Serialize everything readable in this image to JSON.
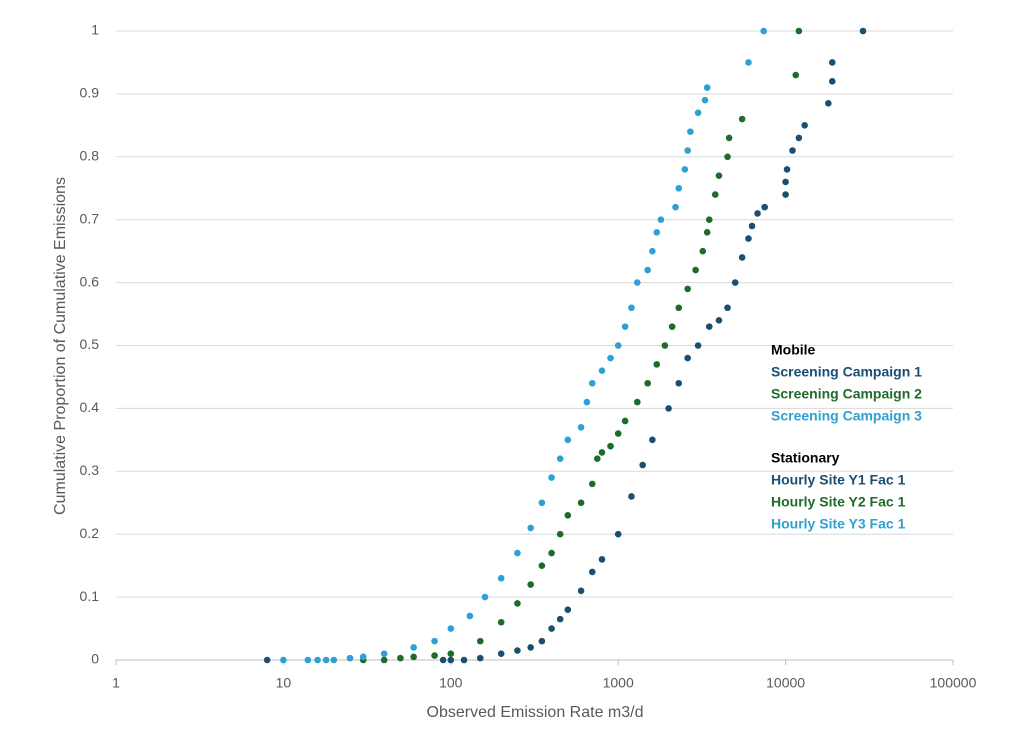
{
  "chart_data": {
    "type": "scatter",
    "xlabel": "Observed Emission Rate m3/d",
    "ylabel": "Cumulative Proportion of Cumulative Emissions",
    "xscale": "log",
    "xlim": [
      1,
      100000
    ],
    "xticks": [
      1,
      10,
      100,
      1000,
      10000,
      100000
    ],
    "ylim": [
      0,
      1
    ],
    "yticks": [
      0,
      0.1,
      0.2,
      0.3,
      0.4,
      0.5,
      0.6,
      0.7,
      0.8,
      0.9,
      1
    ],
    "grid": true,
    "legend_position": "right",
    "series": [
      {
        "color": "#1b4f72",
        "x": [
          8,
          90,
          100,
          120,
          150,
          200,
          250,
          300,
          350,
          400,
          450,
          500,
          600,
          700,
          800,
          1000,
          1200,
          1400,
          1600,
          2000,
          2300,
          2600,
          3000,
          3500,
          4000,
          4500,
          5000,
          5500,
          6000,
          6300,
          6800,
          7500,
          10000,
          10000,
          10200,
          11000,
          12000,
          13000,
          18000,
          19000,
          19000,
          29000
        ],
        "values": [
          0,
          0,
          0,
          0,
          0.003,
          0.01,
          0.015,
          0.02,
          0.03,
          0.05,
          0.065,
          0.08,
          0.11,
          0.14,
          0.16,
          0.2,
          0.26,
          0.31,
          0.35,
          0.4,
          0.44,
          0.48,
          0.5,
          0.53,
          0.54,
          0.56,
          0.6,
          0.64,
          0.67,
          0.69,
          0.71,
          0.72,
          0.74,
          0.76,
          0.78,
          0.81,
          0.83,
          0.85,
          0.885,
          0.92,
          0.95,
          1
        ]
      },
      {
        "color": "#1e6b2a",
        "x": [
          30,
          40,
          50,
          60,
          80,
          100,
          150,
          200,
          250,
          300,
          350,
          400,
          450,
          500,
          600,
          700,
          750,
          800,
          900,
          1000,
          1100,
          1300,
          1500,
          1700,
          1900,
          2100,
          2300,
          2600,
          2900,
          3200,
          3400,
          3500,
          3800,
          4000,
          4500,
          4600,
          5500,
          11500,
          12000
        ],
        "values": [
          0,
          0,
          0.003,
          0.005,
          0.007,
          0.01,
          0.03,
          0.06,
          0.09,
          0.12,
          0.15,
          0.17,
          0.2,
          0.23,
          0.25,
          0.28,
          0.32,
          0.33,
          0.34,
          0.36,
          0.38,
          0.41,
          0.44,
          0.47,
          0.5,
          0.53,
          0.56,
          0.59,
          0.62,
          0.65,
          0.68,
          0.7,
          0.74,
          0.77,
          0.8,
          0.83,
          0.86,
          0.93,
          1
        ]
      },
      {
        "color": "#2fa0d2",
        "x": [
          10,
          14,
          16,
          18,
          20,
          25,
          30,
          40,
          60,
          80,
          100,
          130,
          160,
          200,
          250,
          300,
          350,
          400,
          450,
          500,
          600,
          650,
          700,
          800,
          900,
          1000,
          1100,
          1200,
          1300,
          1500,
          1600,
          1700,
          1800,
          2200,
          2300,
          2500,
          2600,
          2700,
          3000,
          3300,
          3400,
          6000,
          7400
        ],
        "values": [
          0,
          0,
          0,
          0,
          0,
          0.003,
          0.005,
          0.01,
          0.02,
          0.03,
          0.05,
          0.07,
          0.1,
          0.13,
          0.17,
          0.21,
          0.25,
          0.29,
          0.32,
          0.35,
          0.37,
          0.41,
          0.44,
          0.46,
          0.48,
          0.5,
          0.53,
          0.56,
          0.6,
          0.62,
          0.65,
          0.68,
          0.7,
          0.72,
          0.75,
          0.78,
          0.81,
          0.84,
          0.87,
          0.89,
          0.91,
          0.95,
          1
        ]
      }
    ],
    "legend_groups": [
      {
        "title": "Mobile",
        "items": [
          {
            "name": "Screening Campaign 1",
            "color": "#1b4f72"
          },
          {
            "name": "Screening Campaign 2",
            "color": "#1e6b2a"
          },
          {
            "name": "Screening Campaign 3",
            "color": "#2fa0d2"
          }
        ]
      },
      {
        "title": "Stationary",
        "items": [
          {
            "name": "Hourly Site Y1 Fac 1",
            "color": "#1b4f72"
          },
          {
            "name": "Hourly Site Y2 Fac 1",
            "color": "#1e6b2a"
          },
          {
            "name": "Hourly Site Y3 Fac 1",
            "color": "#2fa0d2"
          }
        ]
      }
    ]
  }
}
